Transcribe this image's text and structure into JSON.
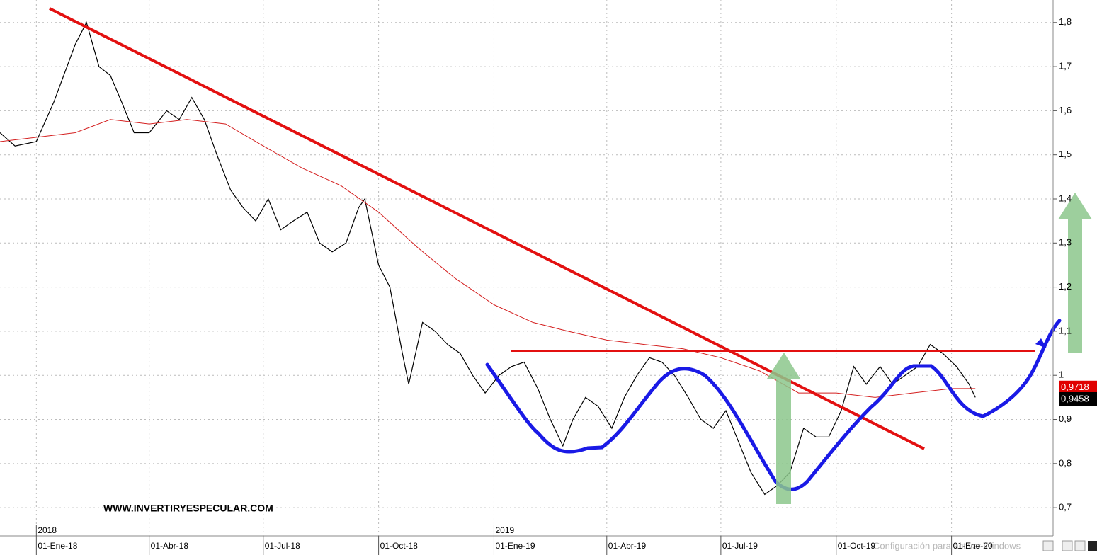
{
  "chart_data": {
    "type": "line",
    "watermark": "WWW.INVERTIRYESPECULAR.COM",
    "overlay_text": "Configuración para activar Windows",
    "x_year_labels": [
      {
        "value": "2018-01-01",
        "label": "2018"
      },
      {
        "value": "2019-01-01",
        "label": "2019"
      }
    ],
    "xlim": [
      "2017-12-03",
      "2020-03-22"
    ],
    "xticks": [
      {
        "value": "2018-01-01",
        "label": "01-Ene-18"
      },
      {
        "value": "2018-04-01",
        "label": "01-Abr-18"
      },
      {
        "value": "2018-07-01",
        "label": "01-Jul-18"
      },
      {
        "value": "2018-10-01",
        "label": "01-Oct-18"
      },
      {
        "value": "2019-01-01",
        "label": "01-Ene-19"
      },
      {
        "value": "2019-04-01",
        "label": "01-Abr-19"
      },
      {
        "value": "2019-07-01",
        "label": "01-Jul-19"
      },
      {
        "value": "2019-10-01",
        "label": "01-Oct-19"
      },
      {
        "value": "2020-01-01",
        "label": "01-Ene-20"
      }
    ],
    "ylim": [
      0.636,
      1.851
    ],
    "yticks": [
      {
        "value": 0.7,
        "label": "0,7"
      },
      {
        "value": 0.8,
        "label": "0,8"
      },
      {
        "value": 0.9,
        "label": "0,9"
      },
      1,
      {
        "value": 1.1,
        "label": "1,1"
      },
      {
        "value": 1.2,
        "label": "1,2"
      },
      {
        "value": 1.3,
        "label": "1,3"
      },
      {
        "value": 1.4,
        "label": "1,4"
      },
      {
        "value": 1.5,
        "label": "1,5"
      },
      {
        "value": 1.6,
        "label": "1,6"
      },
      {
        "value": 1.7,
        "label": "1,7"
      },
      {
        "value": 1.8,
        "label": "1,8"
      }
    ],
    "grid": true,
    "series": [
      {
        "color": "#000000",
        "width": 1.2,
        "x": [
          "2017-12-03",
          "2017-12-15",
          "2018-01-01",
          "2018-01-15",
          "2018-02-01",
          "2018-02-10",
          "2018-02-20",
          "2018-03-01",
          "2018-03-10",
          "2018-03-20",
          "2018-04-01",
          "2018-04-15",
          "2018-04-25",
          "2018-05-05",
          "2018-05-15",
          "2018-05-25",
          "2018-06-05",
          "2018-06-15",
          "2018-06-25",
          "2018-07-05",
          "2018-07-15",
          "2018-07-25",
          "2018-08-05",
          "2018-08-15",
          "2018-08-25",
          "2018-09-05",
          "2018-09-15",
          "2018-09-20",
          "2018-10-01",
          "2018-10-10",
          "2018-10-20",
          "2018-10-25",
          "2018-11-05",
          "2018-11-15",
          "2018-11-25",
          "2018-12-05",
          "2018-12-15",
          "2018-12-25",
          "2019-01-05",
          "2019-01-15",
          "2019-01-25",
          "2019-02-05",
          "2019-02-15",
          "2019-02-25",
          "2019-03-05",
          "2019-03-15",
          "2019-03-25",
          "2019-04-05",
          "2019-04-15",
          "2019-04-25",
          "2019-05-05",
          "2019-05-15",
          "2019-05-25",
          "2019-06-05",
          "2019-06-15",
          "2019-06-25",
          "2019-07-05",
          "2019-07-15",
          "2019-07-25",
          "2019-08-05",
          "2019-08-15",
          "2019-08-25",
          "2019-09-05",
          "2019-09-15",
          "2019-09-25",
          "2019-10-05",
          "2019-10-15",
          "2019-10-25",
          "2019-11-05",
          "2019-11-15",
          "2019-11-25",
          "2019-12-05",
          "2019-12-15",
          "2019-12-25",
          "2020-01-05",
          "2020-01-15",
          "2020-01-20"
        ],
        "values": [
          1.55,
          1.52,
          1.53,
          1.62,
          1.75,
          1.8,
          1.7,
          1.68,
          1.62,
          1.55,
          1.55,
          1.6,
          1.58,
          1.63,
          1.58,
          1.5,
          1.42,
          1.38,
          1.35,
          1.4,
          1.33,
          1.35,
          1.37,
          1.3,
          1.28,
          1.3,
          1.38,
          1.4,
          1.25,
          1.2,
          1.05,
          0.98,
          1.12,
          1.1,
          1.07,
          1.05,
          1.0,
          0.96,
          1.0,
          1.02,
          1.03,
          0.97,
          0.9,
          0.84,
          0.9,
          0.95,
          0.93,
          0.88,
          0.95,
          1.0,
          1.04,
          1.03,
          1.0,
          0.95,
          0.9,
          0.88,
          0.92,
          0.85,
          0.78,
          0.73,
          0.75,
          0.78,
          0.88,
          0.86,
          0.86,
          0.92,
          1.02,
          0.98,
          1.02,
          0.98,
          1.0,
          1.02,
          1.07,
          1.05,
          1.02,
          0.98,
          0.95
        ]
      },
      {
        "color": "#d42020",
        "width": 1,
        "x": [
          "2017-12-03",
          "2018-02-01",
          "2018-03-01",
          "2018-04-01",
          "2018-05-01",
          "2018-06-01",
          "2018-07-01",
          "2018-08-01",
          "2018-09-01",
          "2018-10-01",
          "2018-11-01",
          "2018-12-01",
          "2019-01-01",
          "2019-02-01",
          "2019-03-01",
          "2019-04-01",
          "2019-05-01",
          "2019-06-01",
          "2019-07-01",
          "2019-08-01",
          "2019-09-01",
          "2019-10-01",
          "2019-11-01",
          "2019-12-01",
          "2020-01-01",
          "2020-01-20"
        ],
        "values": [
          1.53,
          1.55,
          1.58,
          1.57,
          1.58,
          1.57,
          1.52,
          1.47,
          1.43,
          1.37,
          1.29,
          1.22,
          1.16,
          1.12,
          1.1,
          1.08,
          1.07,
          1.06,
          1.04,
          1.01,
          0.96,
          0.96,
          0.95,
          0.96,
          0.97,
          0.97
        ]
      }
    ],
    "price_labels": [
      {
        "value": 0.9718,
        "label": "0,9718",
        "color": "#e00000"
      },
      {
        "value": 0.9458,
        "label": "0,9458",
        "color": "#000000"
      }
    ]
  }
}
